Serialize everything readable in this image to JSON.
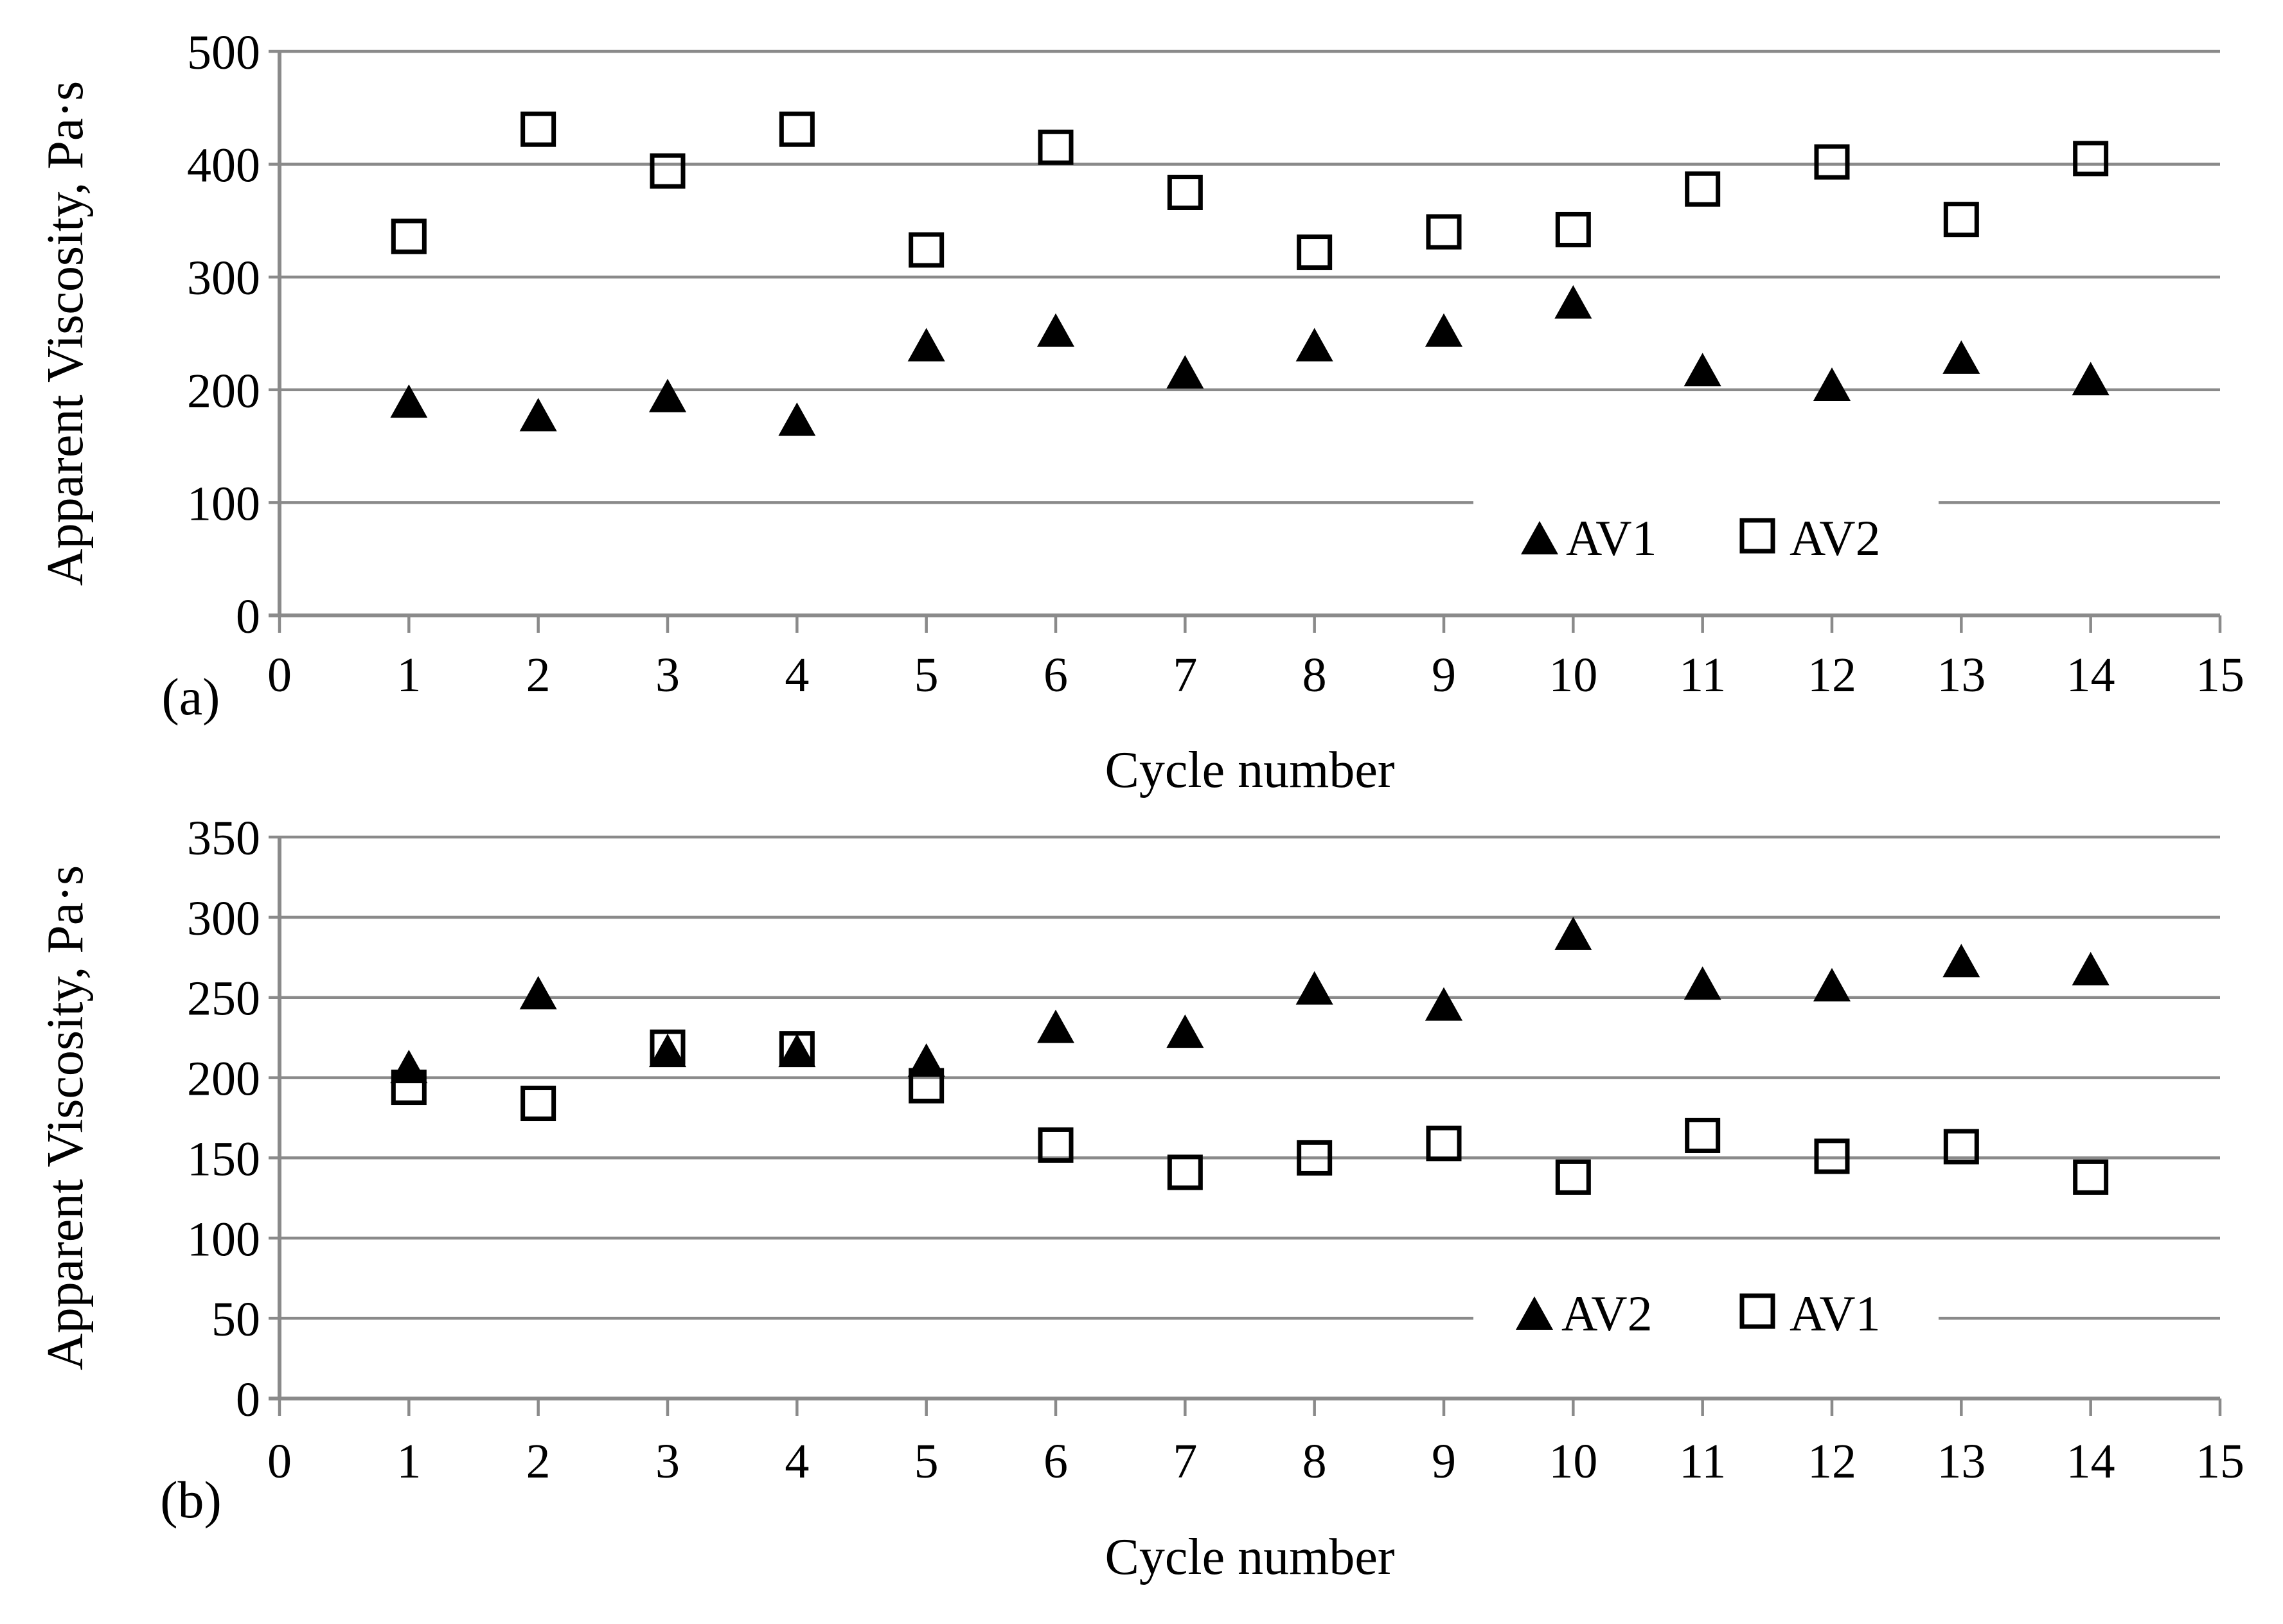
{
  "figure": {
    "description": "Two-panel scatter figure of apparent viscosity versus cycle number",
    "background": "#ffffff"
  },
  "colors": {
    "marker": "#000000",
    "grid": "#8a8a8a",
    "axis": "#8a8a8a",
    "text": "#000000",
    "background": "#ffffff"
  },
  "chart_data": [
    {
      "type": "scatter",
      "panel_label": "(a)",
      "xlabel": "Cycle number",
      "ylabel": "Apparent Viscosity, Pa·s",
      "xlim": [
        0,
        15
      ],
      "ylim": [
        0,
        500
      ],
      "xticks": [
        0,
        1,
        2,
        3,
        4,
        5,
        6,
        7,
        8,
        9,
        10,
        11,
        12,
        13,
        14,
        15
      ],
      "yticks": [
        0,
        100,
        200,
        300,
        400,
        500
      ],
      "grid": "horizontal-gridlines-on",
      "legend_position": "inside-lower-right",
      "x": [
        1,
        2,
        3,
        4,
        5,
        6,
        7,
        8,
        9,
        10,
        11,
        12,
        13,
        14
      ],
      "series": [
        {
          "name": "AV1",
          "marker": "filled-triangle",
          "values": [
            190,
            178,
            195,
            174,
            240,
            253,
            216,
            240,
            253,
            278,
            218,
            205,
            229,
            210
          ]
        },
        {
          "name": "AV2",
          "marker": "open-square",
          "values": [
            336,
            431,
            394,
            431,
            324,
            415,
            375,
            322,
            340,
            342,
            378,
            402,
            351,
            405
          ]
        }
      ],
      "legend": [
        {
          "label": "AV1",
          "marker": "filled-triangle"
        },
        {
          "label": "AV2",
          "marker": "open-square"
        }
      ]
    },
    {
      "type": "scatter",
      "panel_label": "(b)",
      "xlabel": "Cycle number",
      "ylabel": "Apparent Viscosity, Pa·s",
      "xlim": [
        0,
        15
      ],
      "ylim": [
        0,
        350
      ],
      "xticks": [
        0,
        1,
        2,
        3,
        4,
        5,
        6,
        7,
        8,
        9,
        10,
        11,
        12,
        13,
        14,
        15
      ],
      "yticks": [
        0,
        50,
        100,
        150,
        200,
        250,
        300,
        350
      ],
      "grid": "horizontal-gridlines-on",
      "legend_position": "inside-lower-right",
      "x": [
        1,
        2,
        3,
        4,
        5,
        6,
        7,
        8,
        9,
        10,
        11,
        12,
        13,
        14
      ],
      "series": [
        {
          "name": "AV2",
          "marker": "filled-triangle",
          "values": [
            207,
            253,
            217,
            217,
            211,
            232,
            229,
            256,
            246,
            290,
            259,
            258,
            273,
            268
          ]
        },
        {
          "name": "AV1",
          "marker": "open-square",
          "values": [
            194,
            184,
            219,
            218,
            195,
            158,
            141,
            150,
            159,
            138,
            164,
            151,
            157,
            138
          ]
        }
      ],
      "legend": [
        {
          "label": "AV2",
          "marker": "filled-triangle"
        },
        {
          "label": "AV1",
          "marker": "open-square"
        }
      ]
    }
  ]
}
